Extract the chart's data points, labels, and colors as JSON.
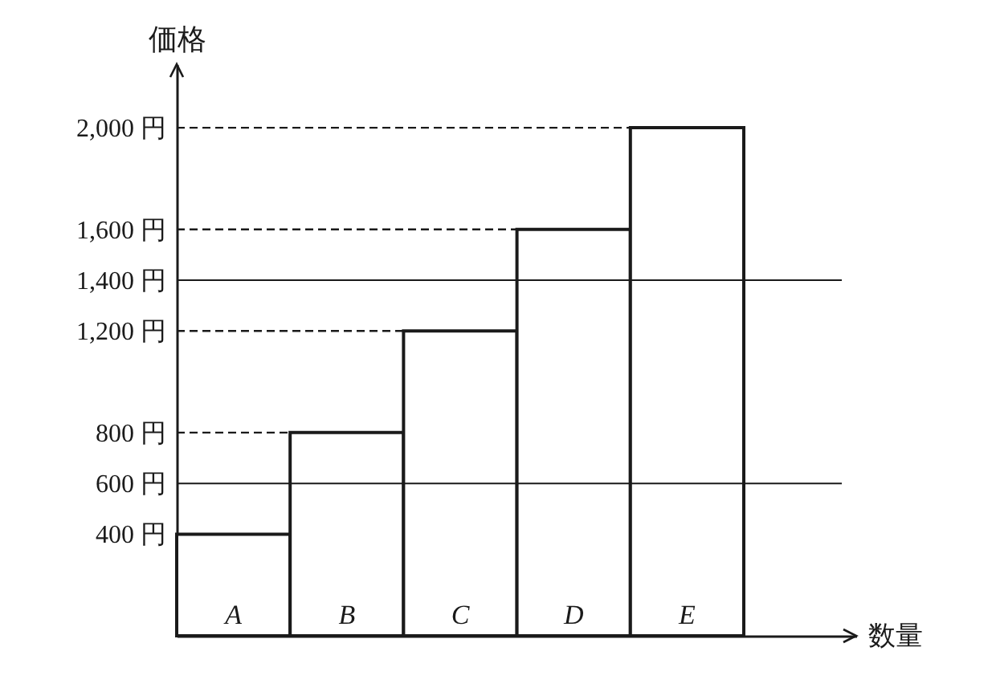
{
  "chart_data": {
    "type": "bar",
    "xlabel": "数量",
    "ylabel": "価格",
    "categories": [
      "A",
      "B",
      "C",
      "D",
      "E"
    ],
    "values": [
      400,
      800,
      1200,
      1600,
      2000
    ],
    "color": "#ffffff",
    "ylim": [
      0,
      2250
    ],
    "yticks": [
      {
        "value": 400,
        "label": "400 円"
      },
      {
        "value": 600,
        "label": "600 円"
      },
      {
        "value": 800,
        "label": "800 円"
      },
      {
        "value": 1200,
        "label": "1,200 円"
      },
      {
        "value": 1400,
        "label": "1,400 円"
      },
      {
        "value": 1600,
        "label": "1,600 円"
      },
      {
        "value": 2000,
        "label": "2,000 円"
      }
    ],
    "ref_lines": [
      {
        "axis": "y",
        "value": 600
      },
      {
        "axis": "y",
        "value": 1400
      },
      {
        "axis": "y",
        "value": 800,
        "line_style": "dashed"
      },
      {
        "axis": "y",
        "value": 1200,
        "line_style": "dashed"
      },
      {
        "axis": "y",
        "value": 1600,
        "line_style": "dashed"
      },
      {
        "axis": "y",
        "value": 2000,
        "line_style": "dashed"
      }
    ]
  }
}
